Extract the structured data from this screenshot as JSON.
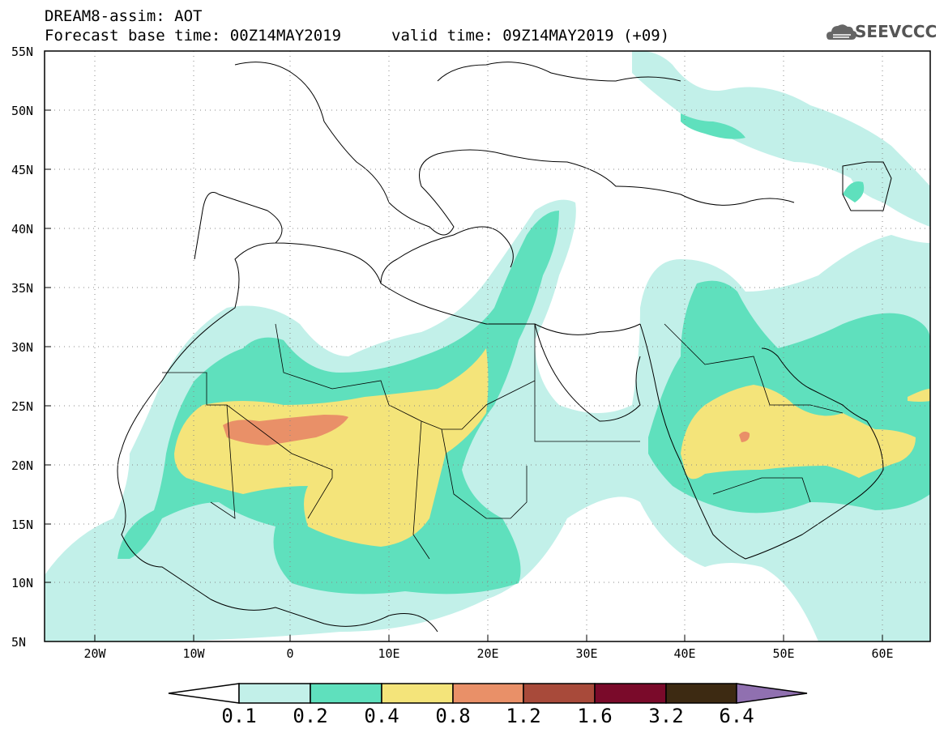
{
  "header": {
    "line1": "DREAM8-assim: AOT",
    "line2_left": "Forecast base time: 00Z14MAY2019",
    "line2_right": "valid time: 09Z14MAY2019 (+09)"
  },
  "logo": {
    "text": "SEEVCCC",
    "icon": "cloud-icon"
  },
  "axes": {
    "lat_labels": [
      "55N",
      "50N",
      "45N",
      "40N",
      "35N",
      "30N",
      "25N",
      "20N",
      "15N",
      "10N",
      "5N"
    ],
    "lon_labels": [
      "20W",
      "10W",
      "0",
      "10E",
      "20E",
      "30E",
      "40E",
      "50E",
      "60E"
    ]
  },
  "colorbar": {
    "labels": [
      "0.1",
      "0.2",
      "0.4",
      "0.8",
      "1.2",
      "1.6",
      "3.2",
      "6.4"
    ],
    "colors": [
      "#ffffff",
      "#c2f0e9",
      "#5fe0bd",
      "#f4e47a",
      "#e99068",
      "#a84a3a",
      "#7a0a2a",
      "#3d2a12",
      "#9070b0"
    ]
  }
}
